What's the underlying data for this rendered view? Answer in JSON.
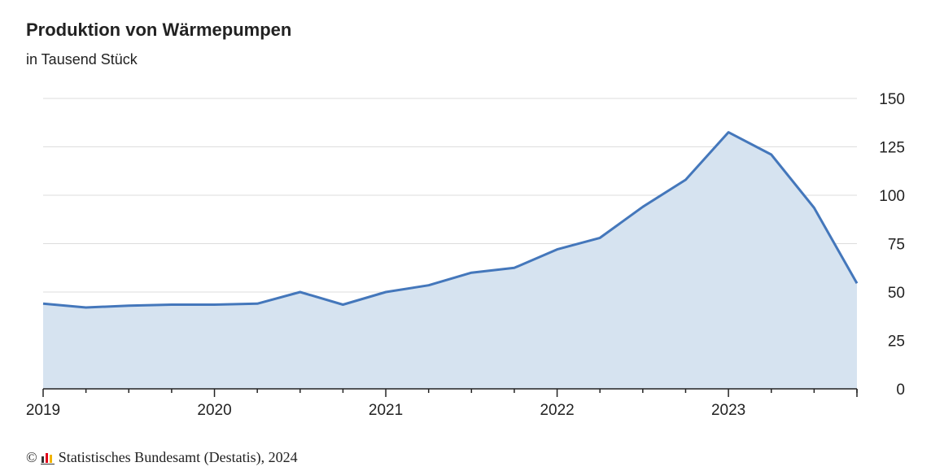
{
  "chart_data": {
    "type": "area",
    "title": "Produktion von Wärmepumpen",
    "subtitle": "in Tausend Stück",
    "x": [
      "2019Q1",
      "2019Q2",
      "2019Q3",
      "2019Q4",
      "2020Q1",
      "2020Q2",
      "2020Q3",
      "2020Q4",
      "2021Q1",
      "2021Q2",
      "2021Q3",
      "2021Q4",
      "2022Q1",
      "2022Q2",
      "2022Q3",
      "2022Q4",
      "2023Q1",
      "2023Q2",
      "2023Q3",
      "2023Q4"
    ],
    "values": [
      44,
      42,
      43,
      43.5,
      43.5,
      44,
      50,
      43.5,
      50,
      53.5,
      60,
      62.5,
      72,
      78,
      94,
      108,
      132.5,
      121,
      93.5,
      54.5
    ],
    "x_tick_labels": [
      "2019",
      "2020",
      "2021",
      "2022",
      "2023"
    ],
    "y_tick_labels": [
      "0",
      "25",
      "50",
      "75",
      "100",
      "125",
      "150"
    ],
    "ylim": [
      0,
      150
    ],
    "grid": true,
    "y_axis_position": "right",
    "line_color": "#4477bb",
    "fill_color": "#d6e3f0"
  },
  "footer": {
    "copyright_symbol": "©",
    "source": "Statistisches Bundesamt (Destatis), 2024"
  },
  "colors": {
    "grid": "#dddddd",
    "axis": "#222222",
    "logo_colors": [
      "#333333",
      "#e2001a",
      "#f0b400"
    ]
  }
}
